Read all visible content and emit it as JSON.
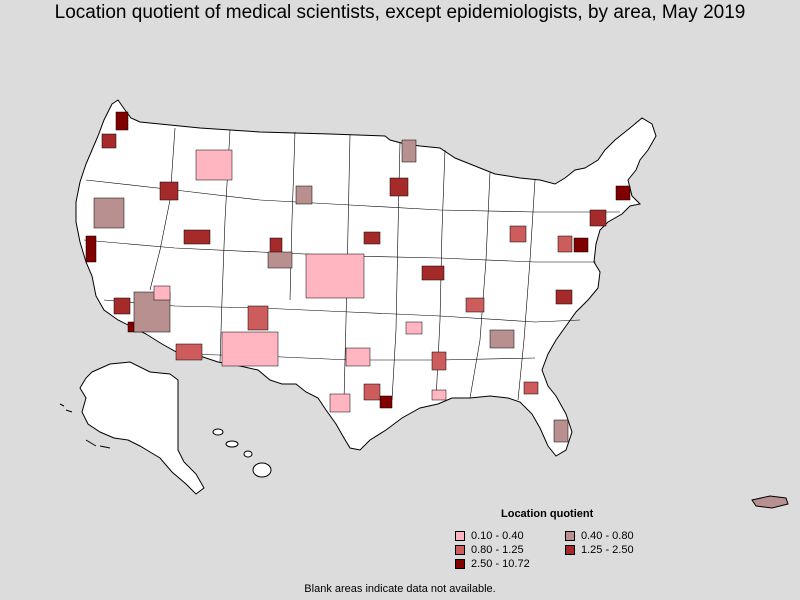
{
  "title": "Location quotient of medical scientists, except epidemiologists, by area, May 2019",
  "legend": {
    "title": "Location quotient",
    "items": [
      {
        "label": "0.10 - 0.40",
        "color": "#ffb6c1"
      },
      {
        "label": "0.40 - 0.80",
        "color": "#b89090"
      },
      {
        "label": "0.80 - 1.25",
        "color": "#cd5c5c"
      },
      {
        "label": "1.25 - 2.50",
        "color": "#a52a2a"
      },
      {
        "label": "2.50 - 10.72",
        "color": "#800000"
      }
    ]
  },
  "footnote": "Blank areas indicate data not available.",
  "colors": {
    "background": "#dcdcdc",
    "land": "#ffffff",
    "border": "#000000"
  }
}
